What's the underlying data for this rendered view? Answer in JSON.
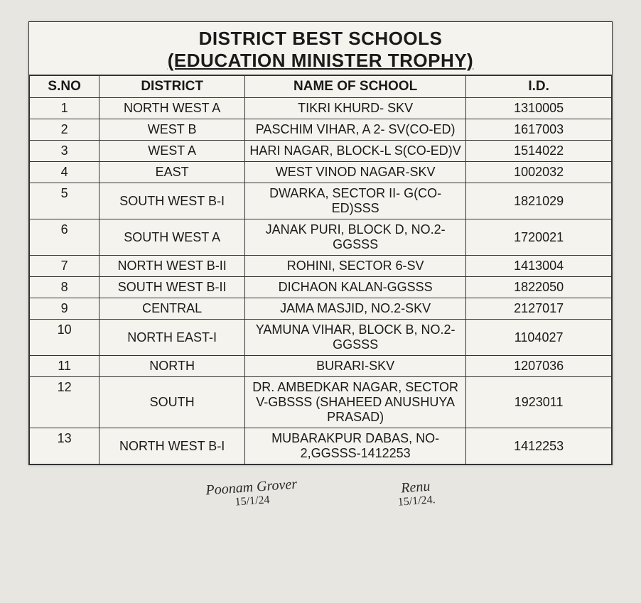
{
  "title_line1": "DISTRICT BEST SCHOOLS",
  "title_line2": "(EDUCATION MINISTER TROPHY)",
  "columns": {
    "sno": "S.NO",
    "district": "DISTRICT",
    "school": "NAME OF SCHOOL",
    "id": "I.D."
  },
  "rows": [
    {
      "sno": "1",
      "district": "NORTH WEST A",
      "school": "TIKRI KHURD- SKV",
      "id": "1310005"
    },
    {
      "sno": "2",
      "district": "WEST B",
      "school": "PASCHIM VIHAR, A 2- SV(CO-ED)",
      "id": "1617003"
    },
    {
      "sno": "3",
      "district": "WEST A",
      "school": "HARI NAGAR, BLOCK-L S(CO-ED)V",
      "id": "1514022"
    },
    {
      "sno": "4",
      "district": "EAST",
      "school": "WEST VINOD NAGAR-SKV",
      "id": "1002032"
    },
    {
      "sno": "5",
      "district": "SOUTH WEST B-I",
      "school": "DWARKA, SECTOR II- G(CO-ED)SSS",
      "id": "1821029"
    },
    {
      "sno": "6",
      "district": "SOUTH WEST A",
      "school": "JANAK PURI, BLOCK D, NO.2-GGSSS",
      "id": "1720021"
    },
    {
      "sno": "7",
      "district": "NORTH WEST B-II",
      "school": "ROHINI, SECTOR 6-SV",
      "id": "1413004"
    },
    {
      "sno": "8",
      "district": "SOUTH WEST B-II",
      "school": "DICHAON KALAN-GGSSS",
      "id": "1822050"
    },
    {
      "sno": "9",
      "district": "CENTRAL",
      "school": "JAMA MASJID, NO.2-SKV",
      "id": "2127017"
    },
    {
      "sno": "10",
      "district": "NORTH EAST-I",
      "school": "YAMUNA VIHAR, BLOCK B, NO.2-GGSSS",
      "id": "1104027"
    },
    {
      "sno": "11",
      "district": "NORTH",
      "school": "BURARI-SKV",
      "id": "1207036"
    },
    {
      "sno": "12",
      "district": "SOUTH",
      "school": "DR. AMBEDKAR NAGAR, SECTOR V-GBSSS (SHAHEED ANUSHUYA PRASAD)",
      "id": "1923011"
    },
    {
      "sno": "13",
      "district": "NORTH WEST B-I",
      "school": "MUBARAKPUR DABAS, NO-2,GGSSS-1412253",
      "id": "1412253"
    }
  ],
  "signatures": [
    {
      "name": "Poonam Grover",
      "date": "15/1/24"
    },
    {
      "name": "Renu",
      "date": "15/1/24."
    }
  ],
  "style": {
    "background": "#f5f3ed",
    "border_color": "#333333",
    "title_fontsize": 26,
    "cell_fontsize": 18,
    "col_widths_pct": [
      12,
      25,
      38,
      25
    ]
  }
}
